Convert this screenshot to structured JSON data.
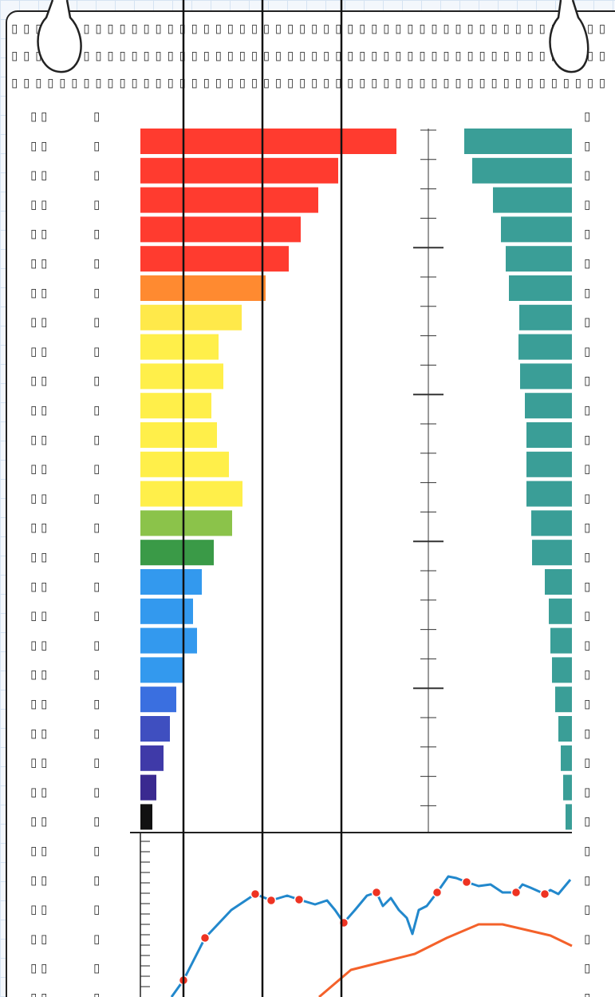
{
  "header": [
    "▯ ▯ ▯ ▯ ▯ ▯ ▯ ▯ ▯ ▯ ▯ ▯ ▯ ▯ ▯ ▯ ▯ ▯ ▯ ▯ ▯ ▯ ▯ ▯ ▯ ▯ ▯ ▯ ▯ ▯ ▯ ▯ ▯ ▯ ▯ ▯ ▯ ▯ ▯ ▯ ▯ ▯ ▯ ▯ ▯ ▯ ▯ ▯ ▯ ▯",
    "▯ ▯ ▯ ▯ ▯ ▯ ▯ ▯ ▯ ▯ ▯ ▯ ▯ ▯ ▯ ▯ ▯ ▯ ▯ ▯ ▯ ▯ ▯ ▯ ▯ ▯ ▯ ▯ ▯ ▯ ▯ ▯ ▯ ▯ ▯ ▯ ▯ ▯ ▯ ▯ ▯ ▯ ▯ ▯ ▯ ▯ ▯ ▯ ▯ ▯",
    "▯ ▯ ▯ ▯ ▯ ▯ ▯ ▯ ▯ ▯ ▯ ▯ ▯ ▯ ▯ ▯ ▯ ▯ ▯ ▯ ▯ ▯ ▯ ▯ ▯ ▯ ▯ ▯ ▯ ▯ ▯ ▯ ▯ ▯ ▯ ▯ ▯ ▯ ▯ ▯ ▯ ▯ ▯ ▯ ▯ ▯ ▯ ▯ ▯ ▯"
  ],
  "rows": [
    [
      "▯ ▯",
      "▯",
      "▯"
    ],
    [
      "▯ ▯",
      "▯",
      "▯"
    ],
    [
      "▯ ▯",
      "▯",
      "▯"
    ],
    [
      "▯ ▯",
      "▯",
      "▯"
    ],
    [
      "▯ ▯",
      "▯",
      "▯"
    ],
    [
      "▯ ▯",
      "▯",
      "▯"
    ],
    [
      "▯ ▯",
      "▯",
      "▯"
    ],
    [
      "▯ ▯",
      "▯",
      "▯"
    ],
    [
      "▯ ▯",
      "▯",
      "▯"
    ],
    [
      "▯ ▯",
      "▯",
      "▯"
    ],
    [
      "▯ ▯",
      "▯",
      "▯"
    ],
    [
      "▯ ▯",
      "▯",
      "▯"
    ],
    [
      "▯ ▯",
      "▯",
      "▯"
    ],
    [
      "▯ ▯",
      "▯",
      "▯"
    ],
    [
      "▯ ▯",
      "▯",
      "▯"
    ],
    [
      "▯ ▯",
      "▯",
      "▯"
    ],
    [
      "▯ ▯",
      "▯",
      "▯"
    ],
    [
      "▯ ▯",
      "▯",
      "▯"
    ],
    [
      "▯ ▯",
      "▯",
      "▯"
    ],
    [
      "▯ ▯",
      "▯",
      "▯"
    ],
    [
      "▯ ▯",
      "▯",
      "▯"
    ],
    [
      "▯ ▯",
      "▯",
      "▯"
    ],
    [
      "▯ ▯",
      "▯",
      "▯"
    ],
    [
      "▯ ▯",
      "▯",
      "▯"
    ],
    [
      "▯ ▯",
      "▯",
      "▯"
    ],
    [
      "▯ ▯",
      "▯",
      "▯"
    ],
    [
      "▯ ▯",
      "▯",
      "▯"
    ],
    [
      "▯ ▯",
      "▯",
      "▯"
    ],
    [
      "▯ ▯",
      "▯",
      "▯"
    ],
    [
      "▯ ▯",
      "▯",
      "▯"
    ],
    [
      "▯ ▯",
      "▯",
      "▯"
    ]
  ],
  "chart_data": [
    {
      "type": "bar",
      "orientation": "horizontal",
      "anchor": "left",
      "xlim": [
        0,
        340
      ],
      "values": [
        321,
        248,
        223,
        201,
        186,
        157,
        127,
        98,
        104,
        89,
        96,
        111,
        128,
        115,
        92,
        77,
        66,
        71,
        53,
        45,
        37,
        29,
        20,
        15
      ],
      "colors": [
        "#ff3b2f",
        "#ff3b2f",
        "#ff3b2f",
        "#ff3b2f",
        "#ff3b2f",
        "#ff8a30",
        "#ffe94a",
        "#ffef4a",
        "#ffef4a",
        "#ffef4a",
        "#ffef4a",
        "#ffef4a",
        "#ffef4a",
        "#8bc34a",
        "#3a9a47",
        "#3399ee",
        "#3399ee",
        "#3399ee",
        "#3399ee",
        "#3a6fe0",
        "#3f4fc0",
        "#3f3aa8",
        "#3a2a90",
        "#111111"
      ]
    },
    {
      "type": "bar",
      "orientation": "horizontal",
      "anchor": "right",
      "xlim": [
        0,
        340
      ],
      "color": "#3a9e97",
      "values": [
        135,
        125,
        99,
        89,
        83,
        79,
        66,
        67,
        65,
        59,
        57,
        57,
        57,
        51,
        50,
        34,
        29,
        27,
        25,
        21,
        17,
        14,
        11,
        8
      ]
    },
    {
      "type": "line",
      "xlim": [
        0,
        541
      ],
      "ylim": [
        0,
        206
      ],
      "yticks": [
        13,
        26,
        39,
        52,
        65,
        78,
        91,
        104,
        117,
        130,
        143,
        156,
        169,
        182,
        195
      ],
      "series": [
        {
          "color": "#2288cc",
          "line": true,
          "x": [
            39,
            54,
            81,
            114,
            144,
            164,
            184,
            199,
            219,
            234,
            244,
            255,
            269,
            284,
            296,
            304,
            314,
            324,
            334,
            341,
            349,
            359,
            372,
            386,
            396,
            409,
            424,
            439,
            454,
            471,
            479,
            489,
            507,
            514,
            524,
            539
          ],
          "values": [
            0,
            21,
            74,
            109,
            129,
            121,
            127,
            122,
            116,
            121,
            109,
            93,
            109,
            127,
            131,
            114,
            124,
            109,
            99,
            79,
            109,
            114,
            131,
            151,
            149,
            144,
            139,
            141,
            131,
            131,
            141,
            137,
            129,
            134,
            129,
            147
          ]
        },
        {
          "color": "#f4612a",
          "line": true,
          "x": [
            224,
            264,
            304,
            344,
            384,
            424,
            454,
            484,
            514,
            541
          ],
          "values": [
            0,
            34,
            44,
            54,
            74,
            91,
            91,
            84,
            77,
            64
          ]
        },
        {
          "color": "#ee3322",
          "line": false,
          "x": [
            54,
            81,
            144,
            164,
            199,
            255,
            296,
            372,
            409,
            471,
            507
          ],
          "values": [
            21,
            74,
            129,
            121,
            122,
            93,
            131,
            131,
            144,
            131,
            129
          ]
        }
      ]
    }
  ]
}
